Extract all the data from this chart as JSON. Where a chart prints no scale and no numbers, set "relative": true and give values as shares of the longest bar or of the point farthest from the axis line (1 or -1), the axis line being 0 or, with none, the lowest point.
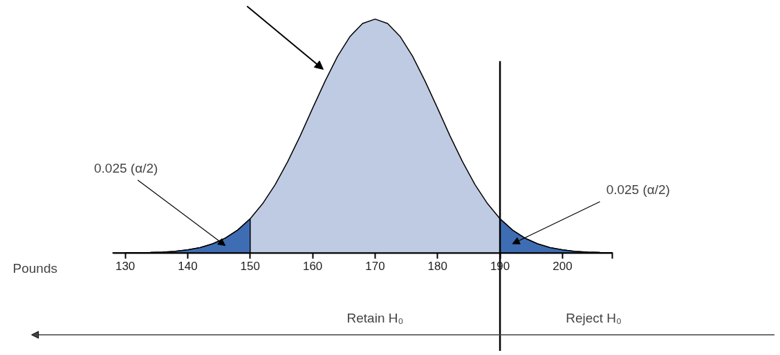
{
  "chart_data": {
    "type": "area",
    "relative": true,
    "xlabel": "Pounds",
    "xlim": [
      110,
      234
    ],
    "xticks": [
      130,
      140,
      150,
      160,
      170,
      180,
      190,
      200,
      {
        "value": 208,
        "label": null
      }
    ],
    "series": [
      {
        "color": "#bfcbe3",
        "x": [
          128,
          130,
          134,
          136,
          138,
          140,
          142,
          144,
          146,
          148,
          150,
          152,
          154,
          156,
          158,
          160,
          162,
          164,
          166,
          168,
          170,
          172,
          174,
          176,
          178,
          180,
          182,
          184,
          186,
          188,
          190,
          192,
          194,
          196,
          198,
          200,
          202,
          204,
          206,
          208
        ],
        "values": [
          0.0002,
          0.0005,
          0.002,
          0.004,
          0.007,
          0.013,
          0.023,
          0.039,
          0.063,
          0.098,
          0.146,
          0.211,
          0.292,
          0.39,
          0.5,
          0.619,
          0.735,
          0.841,
          0.926,
          0.981,
          1,
          0.981,
          0.926,
          0.841,
          0.735,
          0.619,
          0.5,
          0.39,
          0.292,
          0.211,
          0.146,
          0.098,
          0.063,
          0.039,
          0.023,
          0.013,
          0.007,
          0.004,
          0.002,
          0.001
        ]
      },
      {
        "color": "#3f6db3",
        "x": [
          128,
          130,
          134,
          136,
          138,
          140,
          142,
          144,
          146,
          148,
          150
        ],
        "values": [
          0.0002,
          0.0005,
          0.002,
          0.004,
          0.007,
          0.013,
          0.023,
          0.039,
          0.063,
          0.098,
          0.146
        ]
      },
      {
        "color": "#3f6db3",
        "x": [
          190,
          192,
          194,
          196,
          198,
          200,
          202,
          204,
          206,
          208
        ],
        "values": [
          0.146,
          0.098,
          0.063,
          0.039,
          0.023,
          0.013,
          0.007,
          0.004,
          0.002,
          0.001
        ]
      }
    ],
    "ref_lines": [
      {
        "axis": "x",
        "value": 190,
        "color": "#000000"
      }
    ],
    "annotations": [
      "0.025 (α/2)",
      "0.025 (α/2)",
      "Retain H₀",
      "Reject H₀"
    ],
    "grid": false
  }
}
